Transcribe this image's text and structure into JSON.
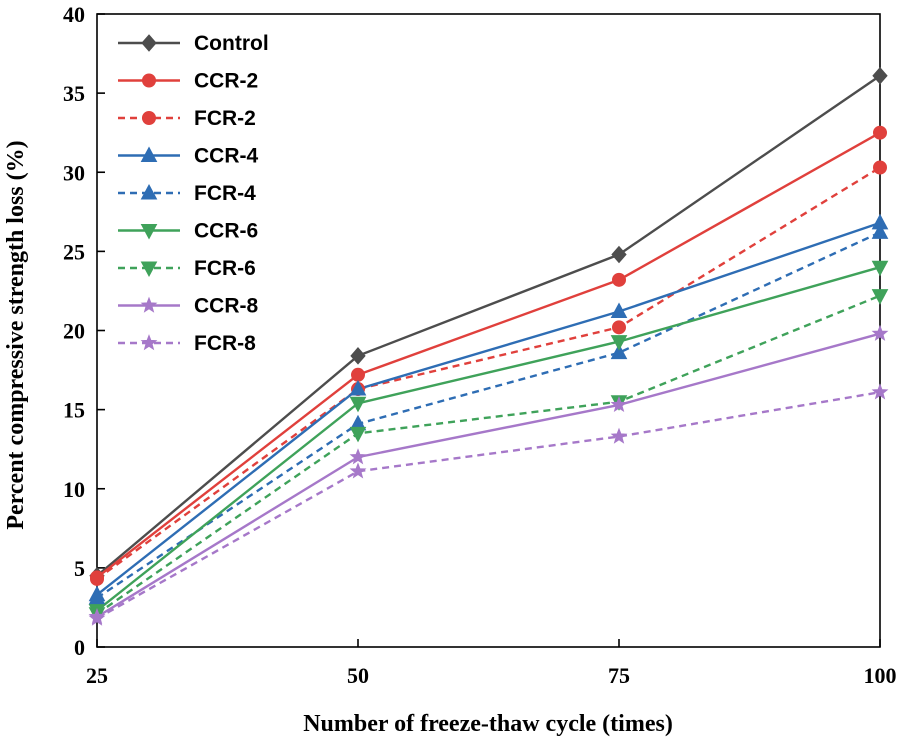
{
  "chart_data": {
    "type": "line",
    "title": "",
    "xlabel": "Number of freeze-thaw cycle (times)",
    "ylabel": "Percent compressive strength loss (%)",
    "x": [
      25,
      50,
      75,
      100
    ],
    "x_tick_labels": [
      "25",
      "50",
      "75",
      "100"
    ],
    "xlim": [
      25,
      100
    ],
    "ylim": [
      0,
      40
    ],
    "y_ticks": [
      0,
      5,
      10,
      15,
      20,
      25,
      30,
      35,
      40
    ],
    "y_tick_labels": [
      "0",
      "5",
      "10",
      "15",
      "20",
      "25",
      "30",
      "35",
      "40"
    ],
    "grid": false,
    "legend_position": "top-left",
    "series": [
      {
        "name": "Control",
        "values": [
          4.5,
          18.4,
          24.8,
          36.1
        ],
        "color": "#4d4d4d",
        "marker": "diamond",
        "dashed": false
      },
      {
        "name": "CCR-2",
        "values": [
          4.4,
          17.2,
          23.2,
          32.5
        ],
        "color": "#e0403c",
        "marker": "circle",
        "dashed": false
      },
      {
        "name": "FCR-2",
        "values": [
          4.3,
          16.3,
          20.2,
          30.3
        ],
        "color": "#e0403c",
        "marker": "circle",
        "dashed": true
      },
      {
        "name": "CCR-4",
        "values": [
          3.3,
          16.3,
          21.2,
          26.8
        ],
        "color": "#2e6db4",
        "marker": "triangle-up",
        "dashed": false
      },
      {
        "name": "FCR-4",
        "values": [
          3.1,
          14.1,
          18.6,
          26.2
        ],
        "color": "#2e6db4",
        "marker": "triangle-up",
        "dashed": true
      },
      {
        "name": "CCR-6",
        "values": [
          2.3,
          15.4,
          19.3,
          24.0
        ],
        "color": "#3fa25a",
        "marker": "triangle-down",
        "dashed": false
      },
      {
        "name": "FCR-6",
        "values": [
          2.1,
          13.5,
          15.5,
          22.2
        ],
        "color": "#3fa25a",
        "marker": "triangle-down",
        "dashed": true
      },
      {
        "name": "CCR-8",
        "values": [
          1.9,
          12.0,
          15.3,
          19.8
        ],
        "color": "#a678c9",
        "marker": "star",
        "dashed": false
      },
      {
        "name": "FCR-8",
        "values": [
          1.8,
          11.1,
          13.3,
          16.1
        ],
        "color": "#a678c9",
        "marker": "star",
        "dashed": true
      }
    ]
  }
}
